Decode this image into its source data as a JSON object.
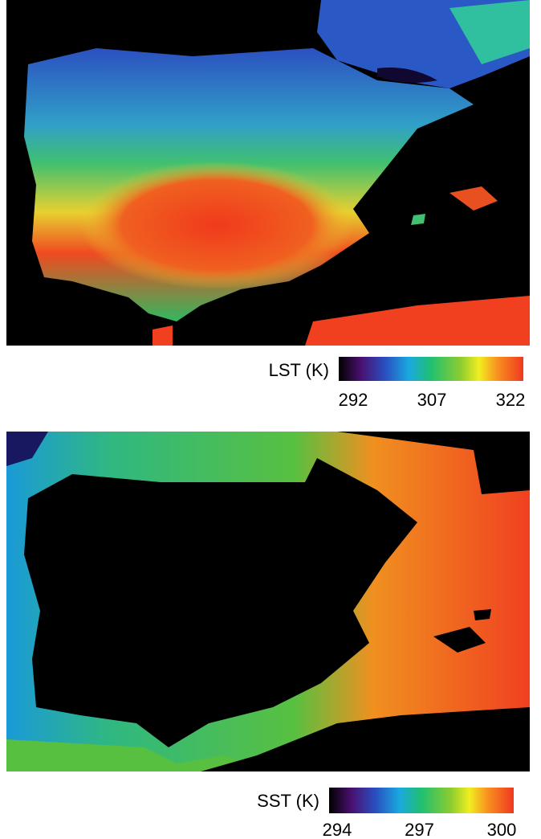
{
  "panels": [
    {
      "label": "LST (K)",
      "ticks": [
        292,
        307,
        322
      ]
    },
    {
      "label": "SST (K)",
      "ticks": [
        294,
        297,
        300
      ]
    }
  ]
}
